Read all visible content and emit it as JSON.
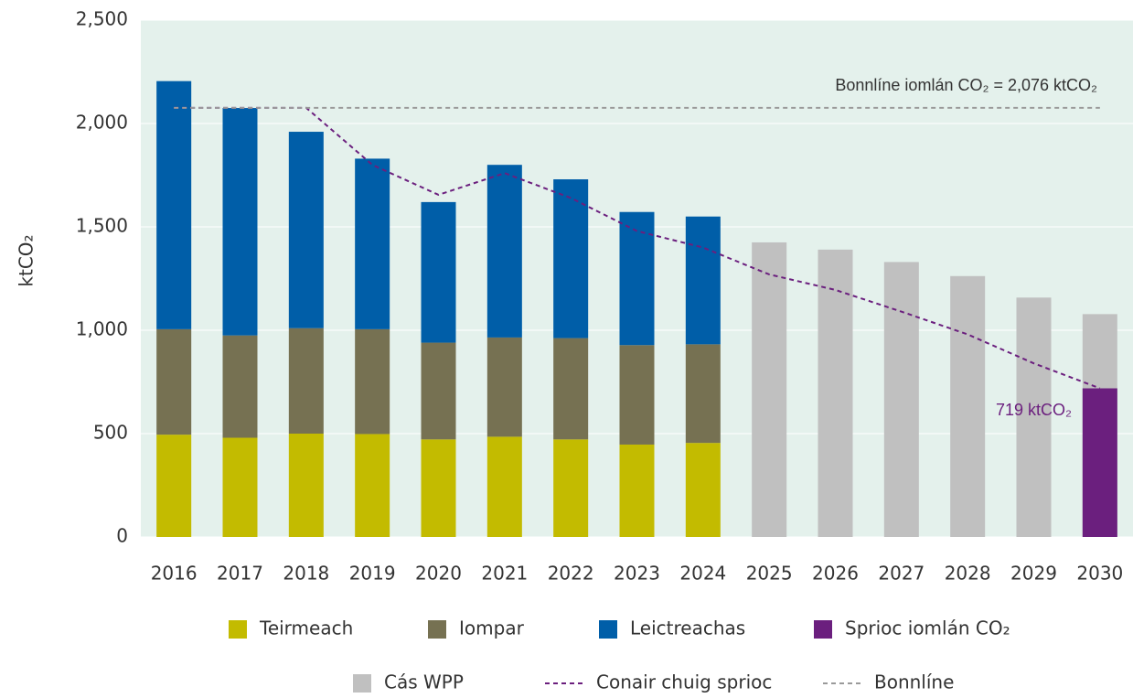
{
  "chart_data": {
    "type": "bar",
    "y_label": "ktCO₂",
    "categories": [
      "2016",
      "2017",
      "2018",
      "2019",
      "2020",
      "2021",
      "2022",
      "2023",
      "2024",
      "2025",
      "2026",
      "2027",
      "2028",
      "2029",
      "2030"
    ],
    "ylim": [
      0,
      2500
    ],
    "yticks": [
      0,
      500,
      {
        "value": 1000,
        "label": "1,000"
      },
      {
        "value": 1500,
        "label": "1,500"
      },
      {
        "value": 2000,
        "label": "2,000"
      },
      {
        "value": 2500,
        "label": "2,500"
      }
    ],
    "grid": true,
    "background": "#e4f1ec",
    "series": [
      {
        "name": "Teirmeach",
        "color": "#c3bb00",
        "stacked": true,
        "values": [
          495,
          480,
          500,
          498,
          472,
          485,
          472,
          447,
          455,
          null,
          null,
          null,
          null,
          null,
          null
        ]
      },
      {
        "name": "Iompar",
        "color": "#767152",
        "stacked": true,
        "values": [
          510,
          495,
          510,
          507,
          468,
          480,
          490,
          481,
          477,
          null,
          null,
          null,
          null,
          null,
          null
        ]
      },
      {
        "name": "Leictreachas",
        "color": "#005ea8",
        "stacked": true,
        "values": [
          1200,
          1100,
          950,
          825,
          680,
          835,
          768,
          644,
          618,
          null,
          null,
          null,
          null,
          null,
          null
        ]
      },
      {
        "name": "Sprioc iomlán CO₂",
        "color": "#6b1f7e",
        "values": [
          null,
          null,
          null,
          null,
          null,
          null,
          null,
          null,
          null,
          null,
          null,
          null,
          null,
          null,
          719
        ]
      },
      {
        "name": "Cás WPP",
        "color": "#c0c0c0",
        "values": [
          null,
          null,
          null,
          null,
          null,
          null,
          null,
          null,
          null,
          1425,
          1390,
          1330,
          1262,
          1158,
          1078
        ]
      },
      {
        "name": "Conair chuig sprioc",
        "color": "#6b1f7e",
        "type": "line",
        "dashed": true,
        "values": [
          2076,
          2076,
          2076,
          1800,
          1655,
          1760,
          1640,
          1480,
          1400,
          1270,
          1195,
          1090,
          980,
          840,
          719
        ]
      },
      {
        "name": "Bonnlíne",
        "color": "#9a9a9a",
        "type": "line",
        "dashed": true,
        "values": [
          2076,
          2076,
          2076,
          2076,
          2076,
          2076,
          2076,
          2076,
          2076,
          2076,
          2076,
          2076,
          2076,
          2076,
          2076
        ]
      }
    ],
    "annotations": [
      {
        "text": "Bonnlíne iomlán CO₂ = 2,076 ktCO₂",
        "color": "#333333"
      },
      {
        "text": "719 ktCO₂",
        "color": "#6b1f7e"
      }
    ]
  }
}
